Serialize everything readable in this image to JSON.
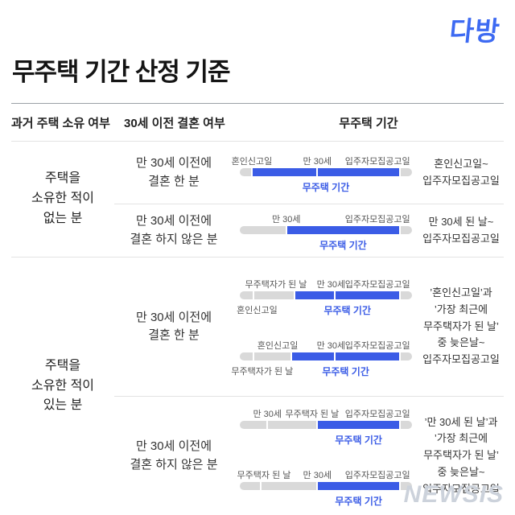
{
  "brand": {
    "logo_text": "다방",
    "logo_color": "#3d6af2"
  },
  "title": "무주택 기간 산정 기준",
  "watermark": "NEWSIS",
  "colors": {
    "accent_blue": "#3b5ce6",
    "bar_gray": "#d9d9d9"
  },
  "table": {
    "headers": [
      "과거 주택 소유 여부",
      "30세 이전 결혼 여부",
      "무주택 기간"
    ],
    "groups": [
      {
        "ownership": "주택을\n소유한 적이\n없는 분",
        "rows": [
          {
            "marriage": "만 30세 이전에\n결혼 한 분",
            "result": "혼인신고일~\n입주자모집공고일",
            "timelines": [
              {
                "fill": [
                  7,
                  93
                ],
                "ticks": [
                  {
                    "pos": 7,
                    "label": "혼인신고일",
                    "side": "top"
                  },
                  {
                    "pos": 45,
                    "label": "만 30세",
                    "side": "top"
                  },
                  {
                    "pos": 93,
                    "label_pos": 80,
                    "label": "입주자모집공고일",
                    "side": "top"
                  }
                ],
                "period_label": "무주택 기간"
              }
            ]
          },
          {
            "marriage": "만 30세 이전에\n결혼 하지 않은 분",
            "result": "만 30세 된 날~\n입주자모집공고일",
            "timelines": [
              {
                "fill": [
                  27,
                  93
                ],
                "ticks": [
                  {
                    "pos": 27,
                    "label": "만 30세",
                    "side": "top"
                  },
                  {
                    "pos": 93,
                    "label_pos": 80,
                    "label": "입주자모집공고일",
                    "side": "top"
                  }
                ],
                "period_label": "무주택 기간"
              }
            ]
          }
        ]
      },
      {
        "ownership": "주택을\n소유한 적이\n있는 분",
        "rows": [
          {
            "marriage": "만 30세 이전에\n결혼 한 분",
            "result": "’혼인신고일’과\n’가장 최근에\n무주택자가 된 날’\n중 늦은날~\n입주자모집공고일",
            "timelines": [
              {
                "fill": [
                  32,
                  93
                ],
                "ticks": [
                  {
                    "pos": 8,
                    "label_pos": 10,
                    "label": "혼인신고일",
                    "side": "bottom"
                  },
                  {
                    "pos": 32,
                    "label_pos": 21,
                    "label": "무주택자가 된 날",
                    "side": "top"
                  },
                  {
                    "pos": 55,
                    "label_pos": 53,
                    "label": "만 30세",
                    "side": "top"
                  },
                  {
                    "pos": 93,
                    "label_pos": 80,
                    "label": "입주자모집공고일",
                    "side": "top"
                  }
                ],
                "period_label": "무주택 기간"
              },
              {
                "fill": [
                  30,
                  93
                ],
                "ticks": [
                  {
                    "pos": 8,
                    "label_pos": 13,
                    "label": "무주택자가 된 날",
                    "side": "bottom"
                  },
                  {
                    "pos": 30,
                    "label_pos": 22,
                    "label": "혼인신고일",
                    "side": "top"
                  },
                  {
                    "pos": 55,
                    "label_pos": 53,
                    "label": "만 30세",
                    "side": "top"
                  },
                  {
                    "pos": 93,
                    "label_pos": 80,
                    "label": "입주자모집공고일",
                    "side": "top"
                  }
                ],
                "period_label": "무주택 기간"
              }
            ]
          },
          {
            "marriage": "만 30세 이전에\n결혼 하지 않은 분",
            "result": "’만 30세 된 날’과\n’가장 최근에\n무주택자가 된 날’\n중 늦은날~\n입주자모집공고일",
            "timelines": [
              {
                "fill": [
                  45,
                  93
                ],
                "ticks": [
                  {
                    "pos": 16,
                    "label": "만 30세",
                    "side": "top"
                  },
                  {
                    "pos": 45,
                    "label_pos": 42,
                    "label": "무주택자 된 날",
                    "side": "top"
                  },
                  {
                    "pos": 93,
                    "label_pos": 80,
                    "label": "입주자모집공고일",
                    "side": "top"
                  }
                ],
                "period_label": "무주택 기간"
              },
              {
                "fill": [
                  45,
                  93
                ],
                "ticks": [
                  {
                    "pos": 12,
                    "label_pos": 14,
                    "label": "무주택자 된 날",
                    "side": "top"
                  },
                  {
                    "pos": 45,
                    "label": "만 30세",
                    "side": "top"
                  },
                  {
                    "pos": 93,
                    "label_pos": 80,
                    "label": "입주자모집공고일",
                    "side": "top"
                  }
                ],
                "period_label": "무주택 기간"
              }
            ]
          }
        ]
      }
    ]
  }
}
